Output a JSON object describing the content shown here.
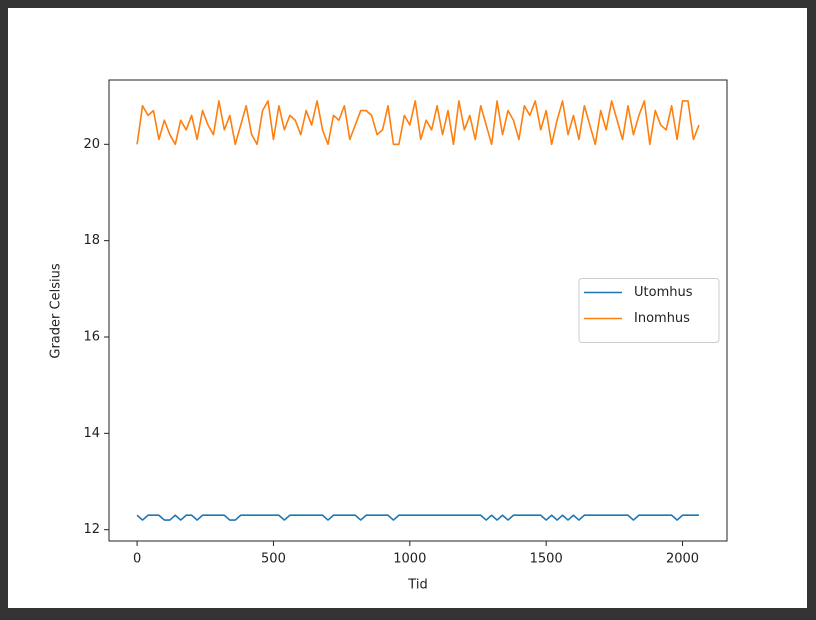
{
  "chart_data": {
    "type": "line",
    "xlabel": "Tid",
    "ylabel": "Grader Celsius",
    "x": [
      0,
      20,
      40,
      60,
      80,
      100,
      120,
      140,
      160,
      180,
      200,
      220,
      240,
      260,
      280,
      300,
      320,
      340,
      360,
      380,
      400,
      420,
      440,
      460,
      480,
      500,
      520,
      540,
      560,
      580,
      600,
      620,
      640,
      660,
      680,
      700,
      720,
      740,
      760,
      780,
      800,
      820,
      840,
      860,
      880,
      900,
      920,
      940,
      960,
      980,
      1000,
      1020,
      1040,
      1060,
      1080,
      1100,
      1120,
      1140,
      1160,
      1180,
      1200,
      1220,
      1240,
      1260,
      1280,
      1300,
      1320,
      1340,
      1360,
      1380,
      1400,
      1420,
      1440,
      1460,
      1480,
      1500,
      1520,
      1540,
      1560,
      1580,
      1600,
      1620,
      1640,
      1660,
      1680,
      1700,
      1720,
      1740,
      1760,
      1780,
      1800,
      1820,
      1840,
      1860,
      1880,
      1900,
      1920,
      1940,
      1960,
      1980,
      2000,
      2020,
      2040,
      2060
    ],
    "series": [
      {
        "name": "Utomhus",
        "color": "#1f77b4",
        "values": [
          12.3,
          12.2,
          12.3,
          12.3,
          12.3,
          12.2,
          12.2,
          12.3,
          12.2,
          12.3,
          12.3,
          12.2,
          12.3,
          12.3,
          12.3,
          12.3,
          12.3,
          12.2,
          12.2,
          12.3,
          12.3,
          12.3,
          12.3,
          12.3,
          12.3,
          12.3,
          12.3,
          12.2,
          12.3,
          12.3,
          12.3,
          12.3,
          12.3,
          12.3,
          12.3,
          12.2,
          12.3,
          12.3,
          12.3,
          12.3,
          12.3,
          12.2,
          12.3,
          12.3,
          12.3,
          12.3,
          12.3,
          12.2,
          12.3,
          12.3,
          12.3,
          12.3,
          12.3,
          12.3,
          12.3,
          12.3,
          12.3,
          12.3,
          12.3,
          12.3,
          12.3,
          12.3,
          12.3,
          12.3,
          12.2,
          12.3,
          12.2,
          12.3,
          12.2,
          12.3,
          12.3,
          12.3,
          12.3,
          12.3,
          12.3,
          12.2,
          12.3,
          12.2,
          12.3,
          12.2,
          12.3,
          12.2,
          12.3,
          12.3,
          12.3,
          12.3,
          12.3,
          12.3,
          12.3,
          12.3,
          12.3,
          12.2,
          12.3,
          12.3,
          12.3,
          12.3,
          12.3,
          12.3,
          12.3,
          12.2,
          12.3,
          12.3,
          12.3,
          12.3
        ]
      },
      {
        "name": "Inomhus",
        "color": "#ff7f0e",
        "values": [
          20.0,
          20.8,
          20.6,
          20.7,
          20.1,
          20.5,
          20.2,
          20.0,
          20.5,
          20.3,
          20.6,
          20.1,
          20.7,
          20.4,
          20.2,
          20.9,
          20.3,
          20.6,
          20.0,
          20.4,
          20.8,
          20.2,
          20.0,
          20.7,
          20.9,
          20.1,
          20.8,
          20.3,
          20.6,
          20.5,
          20.2,
          20.7,
          20.4,
          20.9,
          20.3,
          20.0,
          20.6,
          20.5,
          20.8,
          20.1,
          20.4,
          20.7,
          20.7,
          20.6,
          20.2,
          20.3,
          20.8,
          20.0,
          20.0,
          20.6,
          20.4,
          20.9,
          20.1,
          20.5,
          20.3,
          20.8,
          20.2,
          20.7,
          20.0,
          20.9,
          20.3,
          20.6,
          20.1,
          20.8,
          20.4,
          20.0,
          20.9,
          20.2,
          20.7,
          20.5,
          20.1,
          20.8,
          20.6,
          20.9,
          20.3,
          20.7,
          20.0,
          20.5,
          20.9,
          20.2,
          20.6,
          20.1,
          20.8,
          20.4,
          20.0,
          20.7,
          20.3,
          20.9,
          20.5,
          20.1,
          20.8,
          20.2,
          20.6,
          20.9,
          20.0,
          20.7,
          20.4,
          20.3,
          20.8,
          20.1,
          20.9,
          20.9,
          20.1,
          20.4
        ]
      }
    ],
    "xlim": [
      -103,
      2163
    ],
    "xticks": [
      0,
      500,
      1000,
      1500,
      2000
    ],
    "ylim": [
      11.765,
      21.335
    ],
    "yticks": [
      12,
      14,
      16,
      18,
      20
    ],
    "legend": "center right"
  }
}
